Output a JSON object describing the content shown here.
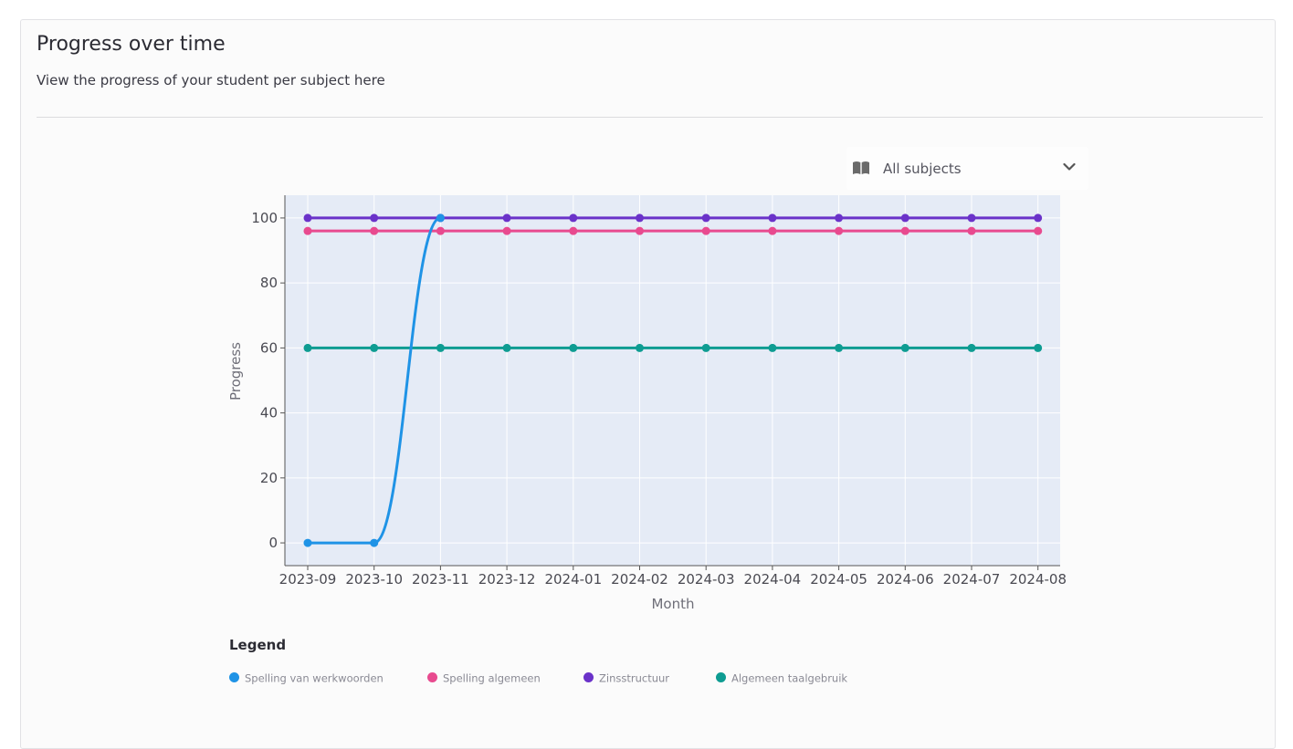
{
  "page": {
    "title": "Progress over time",
    "subtitle": "View the progress of your student per subject here"
  },
  "filter": {
    "icon": "book-icon",
    "selected": "All subjects",
    "chevron_icon": "chevron-down-icon"
  },
  "legend": {
    "title": "Legend"
  },
  "chart_data": {
    "type": "line",
    "xlabel": "Month",
    "ylabel": "Progress",
    "x": [
      "2023-09",
      "2023-10",
      "2023-11",
      "2023-12",
      "2024-01",
      "2024-02",
      "2024-03",
      "2024-04",
      "2024-05",
      "2024-06",
      "2024-07",
      "2024-08"
    ],
    "y_ticks": [
      0,
      20,
      40,
      60,
      80,
      100
    ],
    "ylim": [
      -7,
      107
    ],
    "grid": true,
    "legend_position": "bottom-left",
    "series": [
      {
        "name": "Spelling van werkwoorden",
        "color": "#1f93e6",
        "values": [
          0,
          0,
          100,
          null,
          null,
          null,
          null,
          null,
          null,
          null,
          null,
          null
        ]
      },
      {
        "name": "Spelling algemeen",
        "color": "#e84a8f",
        "values": [
          96,
          96,
          96,
          96,
          96,
          96,
          96,
          96,
          96,
          96,
          96,
          96
        ]
      },
      {
        "name": "Zinsstructuur",
        "color": "#6a32c9",
        "values": [
          100,
          100,
          100,
          100,
          100,
          100,
          100,
          100,
          100,
          100,
          100,
          100
        ]
      },
      {
        "name": "Algemeen taalgebruik",
        "color": "#0e9c92",
        "values": [
          60,
          60,
          60,
          60,
          60,
          60,
          60,
          60,
          60,
          60,
          60,
          60
        ]
      }
    ]
  }
}
